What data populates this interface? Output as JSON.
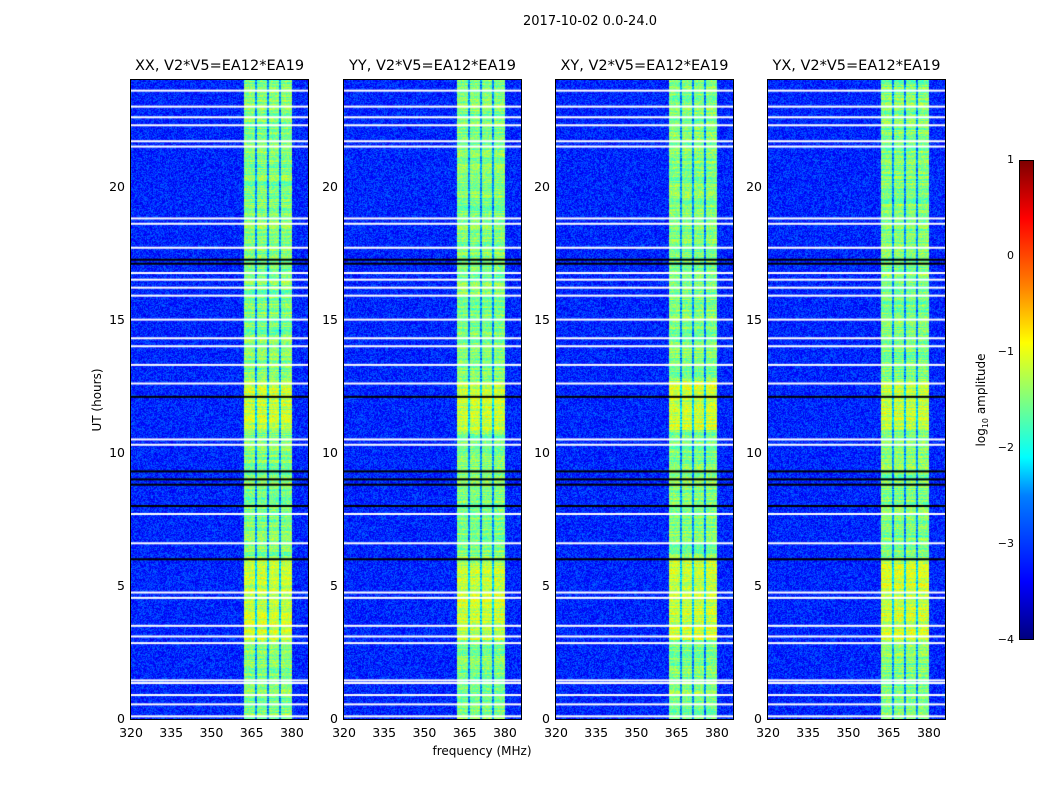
{
  "chart_data": {
    "type": "heatmap",
    "title": "2017-10-02 0.0-24.0",
    "xlabel": "frequency (MHz)",
    "ylabel": "UT (hours)",
    "xlim": [
      320,
      386
    ],
    "ylim": [
      0,
      24
    ],
    "xticks": [
      "320",
      "335",
      "350",
      "365",
      "380"
    ],
    "xtick_values": [
      320,
      335,
      350,
      365,
      380
    ],
    "yticks": [
      "0",
      "5",
      "10",
      "15",
      "20"
    ],
    "ytick_values": [
      0,
      5,
      10,
      15,
      20
    ],
    "panels": [
      {
        "title": "XX, V2*V5=EA12*EA19"
      },
      {
        "title": "YY, V2*V5=EA12*EA19"
      },
      {
        "title": "XY, V2*V5=EA12*EA19"
      },
      {
        "title": "YX, V2*V5=EA12*EA19"
      }
    ],
    "background_log_amplitude": -3.2,
    "band_mhz": [
      362,
      380
    ],
    "band_log_amplitude": -1.5,
    "flagged_hours_white": [
      0.1,
      0.55,
      0.9,
      1.35,
      1.45,
      2.85,
      3.1,
      3.5,
      4.55,
      4.75,
      6.6,
      7.7,
      10.3,
      10.5,
      12.6,
      13.3,
      14.0,
      14.3,
      15.0,
      15.9,
      16.2,
      16.5,
      16.75,
      17.7,
      18.6,
      18.8,
      21.5,
      21.7,
      22.3,
      22.6,
      23.0,
      23.6
    ],
    "flagged_hours_black": [
      6.0,
      8.0,
      8.8,
      9.0,
      9.3,
      12.1,
      17.1,
      17.25
    ],
    "colorbar": {
      "label_prefix": "log",
      "label_sub": "10",
      "label_suffix": " amplitude",
      "range": [
        -4,
        1
      ],
      "ticks": [
        "1",
        "0",
        "−1",
        "−2",
        "−3",
        "−4"
      ],
      "tick_values": [
        1,
        0,
        -1,
        -2,
        -3,
        -4
      ],
      "colormap": "jet"
    }
  }
}
